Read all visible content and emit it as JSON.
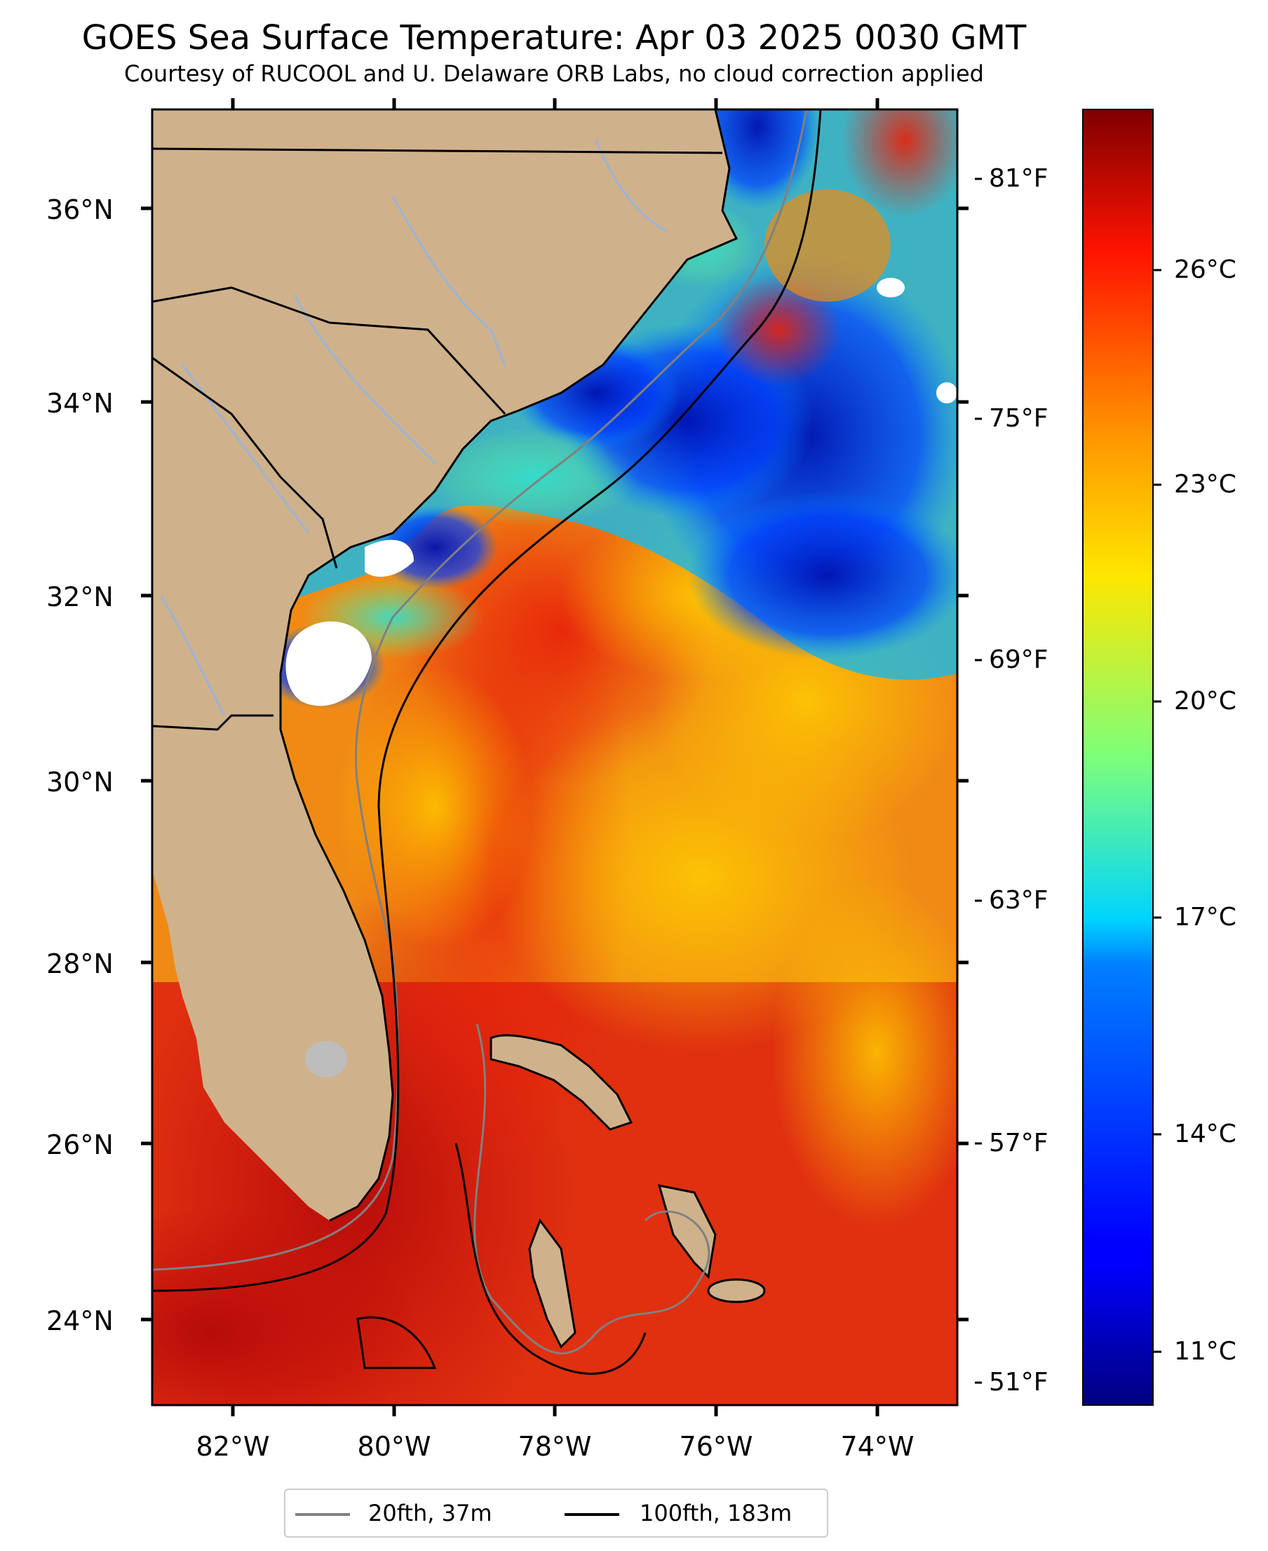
{
  "title": "GOES Sea Surface Temperature: Apr 03 2025 0030 GMT",
  "subtitle": "Courtesy of RUCOOL and U. Delaware ORB Labs, no cloud correction applied",
  "map": {
    "extent": {
      "lon_min": -83.0,
      "lon_max": -73.0,
      "lat_min": 23.1,
      "lat_max": 37.0
    },
    "lat_ticks": [
      "36°N",
      "34°N",
      "32°N",
      "30°N",
      "28°N",
      "26°N",
      "24°N"
    ],
    "lon_ticks": [
      "82°W",
      "80°W",
      "78°W",
      "76°W",
      "74°W"
    ],
    "land_color": "#cfb28b",
    "no_data_color": "#ffffff",
    "lake_color": "#bdbdbd",
    "river_color": "#9db3d6"
  },
  "fahrenheit_ticks": [
    "81°F",
    "75°F",
    "69°F",
    "63°F",
    "57°F",
    "51°F"
  ],
  "colorbar": {
    "colormap": "jet",
    "min_c": 10.1,
    "max_c": 28.2,
    "ticks": [
      "26°C",
      "23°C",
      "20°C",
      "17°C",
      "14°C",
      "11°C"
    ]
  },
  "legend": [
    {
      "label": "20fth, 37m",
      "color": "#808080"
    },
    {
      "label": "100fth, 183m",
      "color": "#000000"
    }
  ]
}
